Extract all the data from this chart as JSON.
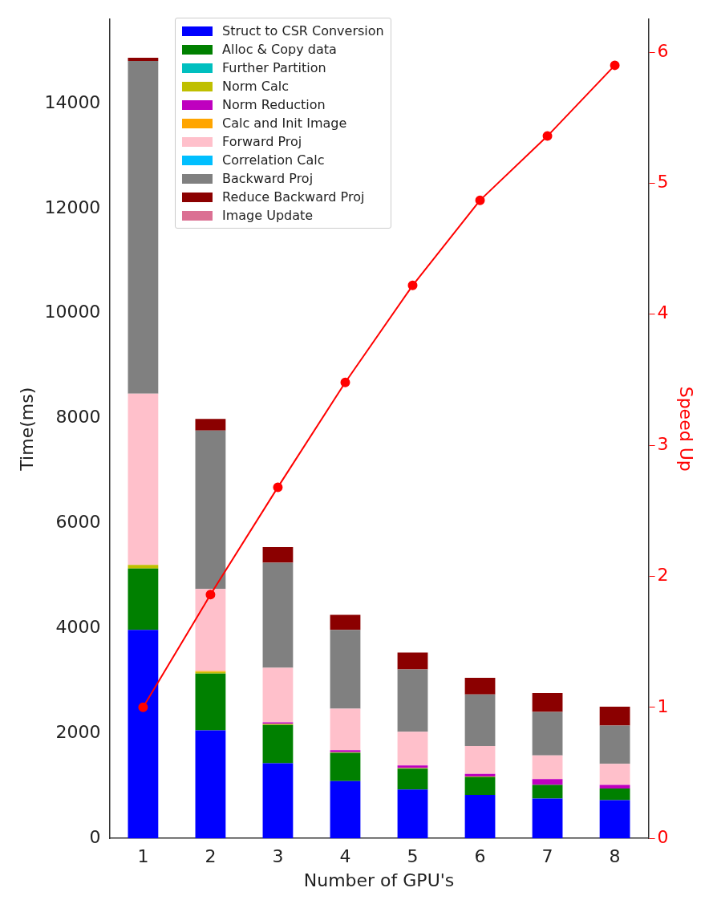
{
  "chart_data": {
    "type": "bar",
    "stacked": true,
    "xlabel": "Number of GPU's",
    "ylabel": "Time(ms)",
    "y2label": "Speed Up",
    "categories": [
      "1",
      "2",
      "3",
      "4",
      "5",
      "6",
      "7",
      "8"
    ],
    "series": [
      {
        "name": "Struct to CSR Conversion",
        "color": "#0000ff",
        "values": [
          3970,
          2060,
          1430,
          1090,
          930,
          830,
          760,
          730
        ]
      },
      {
        "name": "Alloc & Copy data",
        "color": "#008000",
        "values": [
          1170,
          1080,
          730,
          540,
          400,
          340,
          260,
          220
        ]
      },
      {
        "name": "Further Partition",
        "color": "#00bfbf",
        "values": [
          0,
          0,
          0,
          0,
          0,
          0,
          0,
          0
        ]
      },
      {
        "name": "Norm Calc",
        "color": "#bfbf00",
        "values": [
          70,
          30,
          20,
          10,
          10,
          10,
          null,
          null
        ]
      },
      {
        "name": "Norm Reduction",
        "color": "#bf00bf",
        "values": [
          0,
          0,
          30,
          40,
          50,
          50,
          110,
          70
        ]
      },
      {
        "name": "Calc and Init Image",
        "color": "#ffa500",
        "values": [
          0,
          20,
          0,
          0,
          0,
          0,
          0,
          0
        ]
      },
      {
        "name": "Forward Proj",
        "color": "#ffc0cb",
        "values": [
          3260,
          1560,
          1040,
          790,
          640,
          530,
          450,
          400
        ]
      },
      {
        "name": "Correlation Calc",
        "color": "#00bfff",
        "values": [
          0,
          0,
          0,
          0,
          0,
          0,
          0,
          0
        ]
      },
      {
        "name": "Backward Proj",
        "color": "#808080",
        "values": [
          6340,
          3020,
          2000,
          1500,
          1190,
          980,
          830,
          730
        ]
      },
      {
        "name": "Reduce Backward Proj",
        "color": "#8b0000",
        "values": [
          60,
          220,
          300,
          290,
          320,
          320,
          360,
          360
        ]
      },
      {
        "name": "Image Update",
        "color": "#db7093",
        "values": [
          0,
          0,
          0,
          0,
          0,
          0,
          0,
          0
        ]
      },
      {
        "type": "line",
        "axis": "y2",
        "color": "#ff0000",
        "marker": "circle",
        "values": [
          1,
          1.86,
          2.68,
          3.48,
          4.22,
          4.87,
          5.36,
          5.9
        ]
      }
    ],
    "ylim": [
      0,
      15600
    ],
    "yticks": [
      0,
      2000,
      4000,
      6000,
      8000,
      10000,
      12000,
      14000
    ],
    "y2lim": [
      0,
      6.25
    ],
    "y2ticks": [
      0,
      1,
      2,
      3,
      4,
      5,
      6
    ],
    "grid": false,
    "legend": "top"
  }
}
